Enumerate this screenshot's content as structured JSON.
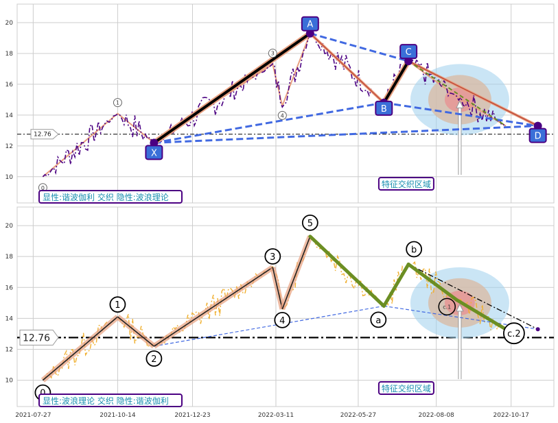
{
  "chart_data": [
    {
      "type": "line",
      "panel": "top",
      "ylim": [
        8.3,
        21.2
      ],
      "yticks": [
        "10",
        "12",
        "14",
        "16",
        "18",
        "20"
      ],
      "hline_value": 12.76,
      "hline_label": "12.76",
      "caption": "显性:谐波伽利 交织 隐性:波浪理论",
      "zone_label": "特征交织区域",
      "pattern_points": [
        {
          "label": "X",
          "date": "2021-11-17",
          "value": 12.2
        },
        {
          "label": "A",
          "date": "2022-04-12",
          "value": 19.3
        },
        {
          "label": "B",
          "date": "2022-06-20",
          "value": 14.8
        },
        {
          "label": "C",
          "date": "2022-07-13",
          "value": 17.5
        },
        {
          "label": "D",
          "date": "2022-11-11",
          "value": 13.3
        }
      ],
      "wave_labels": [
        "0",
        "1",
        "3",
        "4"
      ],
      "wave_points": [
        {
          "label": "0",
          "date": "2021-08-05",
          "value": 10.0
        },
        {
          "label": "1",
          "date": "2021-10-14",
          "value": 14.1
        },
        {
          "label": "2",
          "date": "2021-11-17",
          "value": 12.2
        },
        {
          "label": "3",
          "date": "2022-03-08",
          "value": 17.3
        },
        {
          "label": "4",
          "date": "2022-03-17",
          "value": 14.6
        },
        {
          "label": "5",
          "date": "2022-04-12",
          "value": 19.3
        },
        {
          "label": "a",
          "date": "2022-06-20",
          "value": 14.8
        },
        {
          "label": "b",
          "date": "2022-07-13",
          "value": 17.5
        },
        {
          "label": "c.1",
          "date": "2022-08-27",
          "value": 15.2
        },
        {
          "label": "c.2",
          "date": "2022-10-12",
          "value": 13.3
        }
      ]
    },
    {
      "type": "line",
      "panel": "bottom",
      "ylim": [
        8.3,
        21.2
      ],
      "yticks": [
        "10",
        "12",
        "14",
        "16",
        "18",
        "20"
      ],
      "xticks": [
        "2021-07-27",
        "2021-10-14",
        "2021-12-23",
        "2022-03-11",
        "2022-05-27",
        "2022-08-08",
        "2022-10-17"
      ],
      "hline_value": 12.76,
      "hline_label": "12.76",
      "caption": "显性:波浪理论 交织 隐性:谐波伽利",
      "zone_label": "特征交织区域",
      "wave_labels": [
        "0",
        "1",
        "2",
        "3",
        "4",
        "5",
        "a",
        "b",
        "c.2"
      ],
      "inner_label": "c.1"
    }
  ],
  "colors": {
    "top_price": "#4b0082",
    "bottom_price": "#f0b030",
    "pattern_line": "#4169e1",
    "wave_thick": "#6b8e23",
    "zone_outer": "#9ed0ec",
    "zone_mid": "#d9b8a0",
    "zone_inner": "#e89090",
    "label_box": "#4b0082",
    "label_text": "#1a8fb0"
  }
}
